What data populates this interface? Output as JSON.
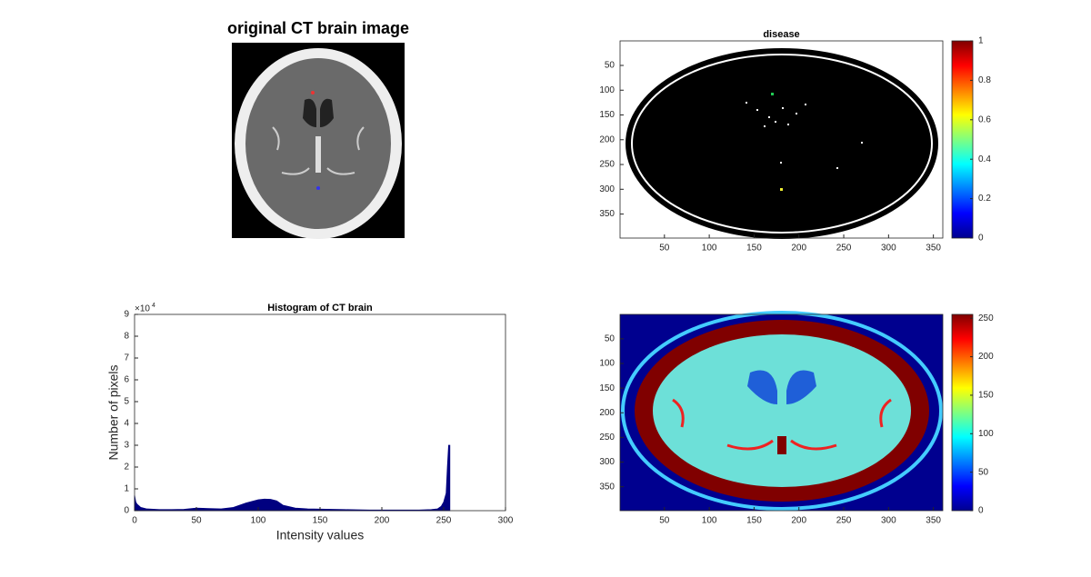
{
  "chart_data": [
    {
      "type": "image",
      "title": "original CT brain image"
    },
    {
      "type": "image",
      "title": "disease",
      "xlim": [
        0.5,
        360.5
      ],
      "ylim": [
        0.5,
        398.5
      ],
      "xticks": [
        50,
        100,
        150,
        200,
        250,
        300,
        350
      ],
      "yticks": [
        50,
        100,
        150,
        200,
        250,
        300,
        350
      ],
      "colormap": "jet",
      "clim": [
        0,
        1
      ],
      "cticks": [
        0,
        0.2,
        0.4,
        0.6,
        0.8,
        1
      ]
    },
    {
      "type": "area",
      "title": "Histogram of CT brain",
      "x_label": "Intensity values",
      "y_label": "Number of pixels",
      "y_exponent": "×10",
      "y_exponent_power": "4",
      "color": "#000080",
      "x": [
        0,
        1,
        2,
        5,
        10,
        20,
        30,
        40,
        50,
        60,
        70,
        80,
        90,
        100,
        105,
        110,
        115,
        120,
        130,
        140,
        150,
        160,
        170,
        180,
        190,
        200,
        210,
        220,
        230,
        240,
        245,
        248,
        250,
        252,
        253,
        254,
        255
      ],
      "values": [
        7000,
        4000,
        3000,
        1500,
        800,
        500,
        500,
        600,
        1200,
        1000,
        800,
        1500,
        3500,
        5000,
        5300,
        5200,
        4500,
        2500,
        1200,
        800,
        700,
        600,
        500,
        400,
        300,
        300,
        300,
        300,
        300,
        500,
        800,
        2000,
        4000,
        8000,
        20000,
        30000,
        30000
      ],
      "xlim": [
        0,
        300
      ],
      "ylim": [
        0,
        90000
      ],
      "xticks": [
        0,
        50,
        100,
        150,
        200,
        250,
        300
      ],
      "yticks": [
        0,
        {
          "value": 10000,
          "label": "1"
        },
        {
          "value": 20000,
          "label": "2"
        },
        {
          "value": 30000,
          "label": "3"
        },
        {
          "value": 40000,
          "label": "4"
        },
        {
          "value": 50000,
          "label": "5"
        },
        {
          "value": 60000,
          "label": "6"
        },
        {
          "value": 70000,
          "label": "7"
        },
        {
          "value": 80000,
          "label": "8"
        },
        {
          "value": 90000,
          "label": "9"
        }
      ]
    },
    {
      "type": "image",
      "xlim": [
        0.5,
        360.5
      ],
      "ylim": [
        0.5,
        398.5
      ],
      "xticks": [
        50,
        100,
        150,
        200,
        250,
        300,
        350
      ],
      "yticks": [
        50,
        100,
        150,
        200,
        250,
        300,
        350
      ],
      "colormap": "jet",
      "clim": [
        0,
        255
      ],
      "cticks": [
        0,
        50,
        100,
        150,
        200,
        250
      ]
    }
  ]
}
